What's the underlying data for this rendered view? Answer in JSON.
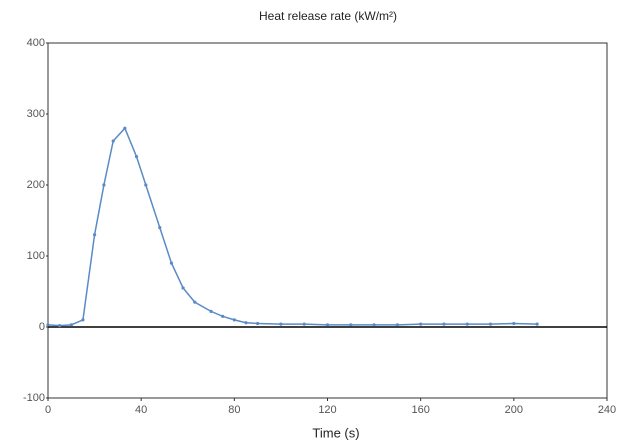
{
  "chart_data": {
    "type": "line",
    "title": "Heat release rate (kW/m²)",
    "x_label": "Time (s)",
    "x": [
      0,
      5,
      10,
      15,
      20,
      24,
      28,
      33,
      38,
      42,
      48,
      53,
      58,
      63,
      70,
      75,
      80,
      85,
      90,
      100,
      110,
      120,
      130,
      140,
      150,
      160,
      170,
      180,
      190,
      200,
      210
    ],
    "values": [
      3,
      2,
      3,
      10,
      130,
      200,
      262,
      280,
      240,
      200,
      140,
      90,
      55,
      35,
      22,
      15,
      10,
      6,
      5,
      4,
      4,
      3,
      3,
      3,
      3,
      4,
      4,
      4,
      4,
      5,
      4
    ],
    "color": "#5b8ac6",
    "xlim": [
      0,
      240
    ],
    "xticks": [
      0,
      40,
      80,
      120,
      160,
      200,
      240
    ],
    "ylim": [
      -100,
      400
    ],
    "yticks": [
      -100,
      0,
      100,
      200,
      300,
      400
    ]
  }
}
